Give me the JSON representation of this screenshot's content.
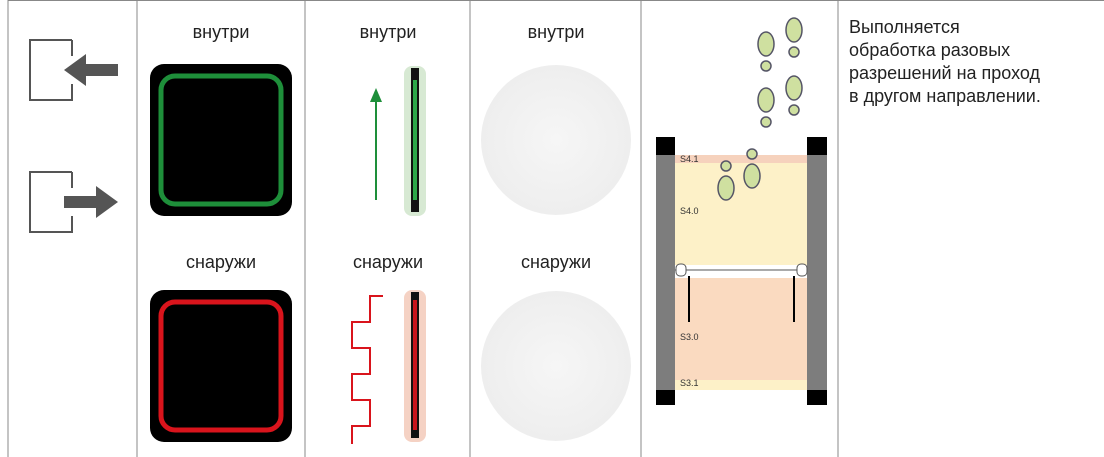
{
  "columns": [
    {
      "top_label": "внутри",
      "bottom_label": "снаружи"
    },
    {
      "top_label": "внутри",
      "bottom_label": "снаружи"
    },
    {
      "top_label": "внутри",
      "bottom_label": "снаружи"
    }
  ],
  "passage_labels": [
    "S4.1",
    "S4.0",
    "S3.0",
    "S3.1"
  ],
  "description": "Выполняется обработка разовых разрешений на проход в другом направлении."
}
